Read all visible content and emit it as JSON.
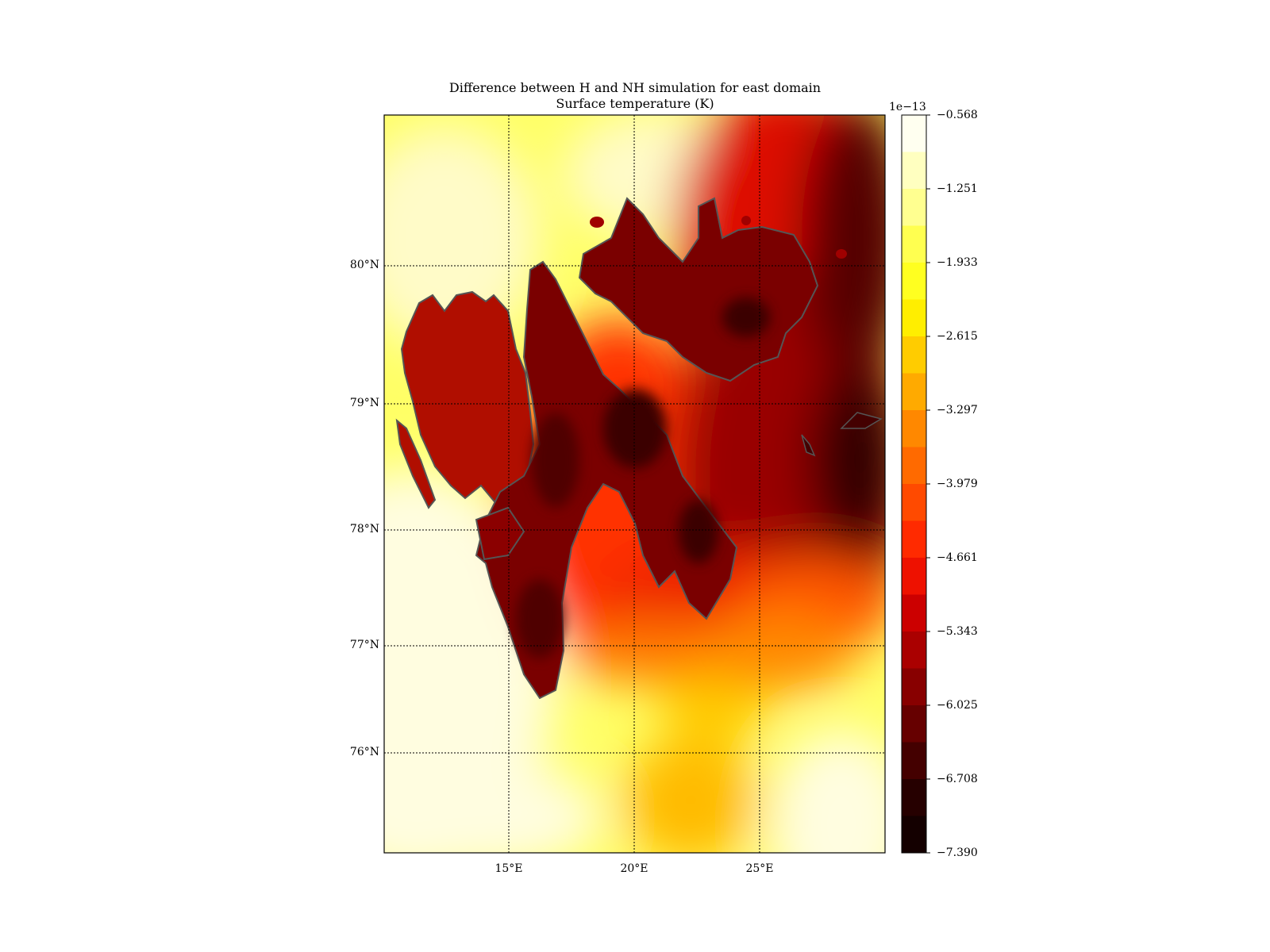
{
  "title": {
    "line1": "Difference between H and NH simulation for east domain",
    "line2": "Surface temperature (K)"
  },
  "lat_labels": [
    "80°N",
    "79°N",
    "78°N",
    "77°N",
    "76°N"
  ],
  "lon_labels": [
    "15°E",
    "20°E",
    "25°E"
  ],
  "colorbar": {
    "exponent": "1e−13",
    "tick_labels": [
      "−0.568",
      "−1.251",
      "−1.933",
      "−2.615",
      "−3.297",
      "−3.979",
      "−4.661",
      "−5.343",
      "−6.025",
      "−6.708",
      "−7.390"
    ],
    "colors": [
      "#fffff0",
      "#ffffc0",
      "#ffff90",
      "#ffff50",
      "#ffff20",
      "#ffee00",
      "#ffcc00",
      "#ffaa00",
      "#ff8800",
      "#ff6a00",
      "#ff4a00",
      "#ff2a00",
      "#ee1100",
      "#cc0000",
      "#aa0000",
      "#880000",
      "#660000",
      "#440000",
      "#260000",
      "#140000"
    ]
  },
  "map": {
    "gridline_style": "dotted",
    "coastline_color": "#555555",
    "ocean_color": "#fffbb0",
    "land_color": "#8b0000"
  }
}
